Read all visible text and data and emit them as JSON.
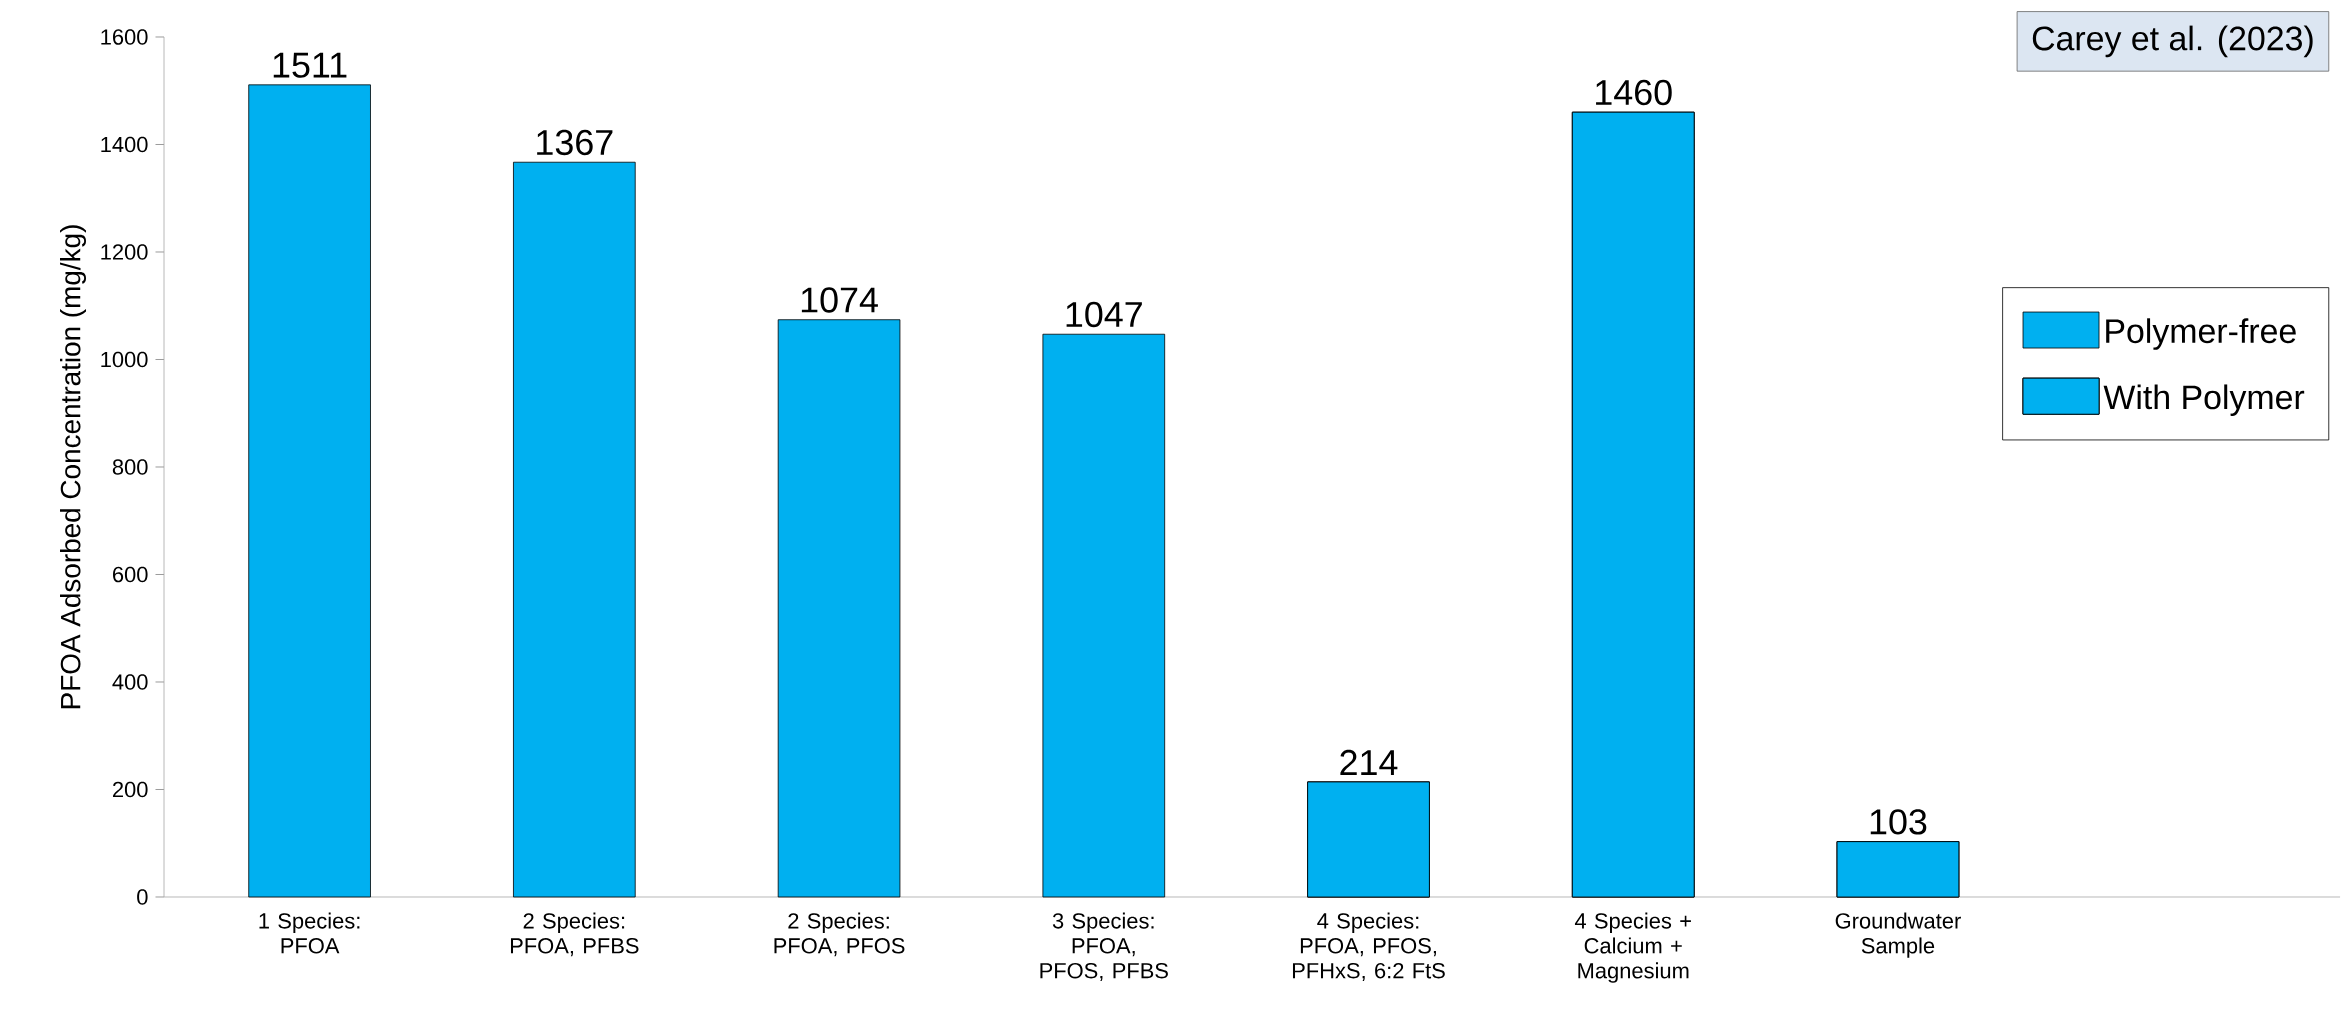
{
  "chart_data": {
    "type": "bar",
    "categories": [
      "1 Species: PFOA",
      "2 Species: PFOA, PFBS",
      "2 Species: PFOA, PFOS",
      "3 Species: PFOA, PFOS, PFBS",
      "4 Species: PFOA, PFOS, PFHxS, 6:2 FtS",
      "4 Species + Calcium + Magnesium",
      "Groundwater Sample"
    ],
    "series": [
      {
        "name": "Polymer-free",
        "color": "#00b0f0",
        "values": [
          1511,
          1367,
          1074,
          1047,
          null,
          null,
          null
        ]
      },
      {
        "name": "With Polymer",
        "color": "#00b0f0",
        "values": [
          null,
          null,
          null,
          null,
          214,
          1460,
          103
        ]
      }
    ],
    "ylabel": "PFOA Adsorbed Concentration (mg/kg)",
    "ylim": [
      0,
      1600
    ],
    "yticks": [
      0,
      200,
      400,
      600,
      800,
      1000,
      1200,
      1400,
      1600
    ],
    "data_labels": true,
    "legend": "right",
    "annotations": [
      "Carey et al. (2023)"
    ]
  }
}
